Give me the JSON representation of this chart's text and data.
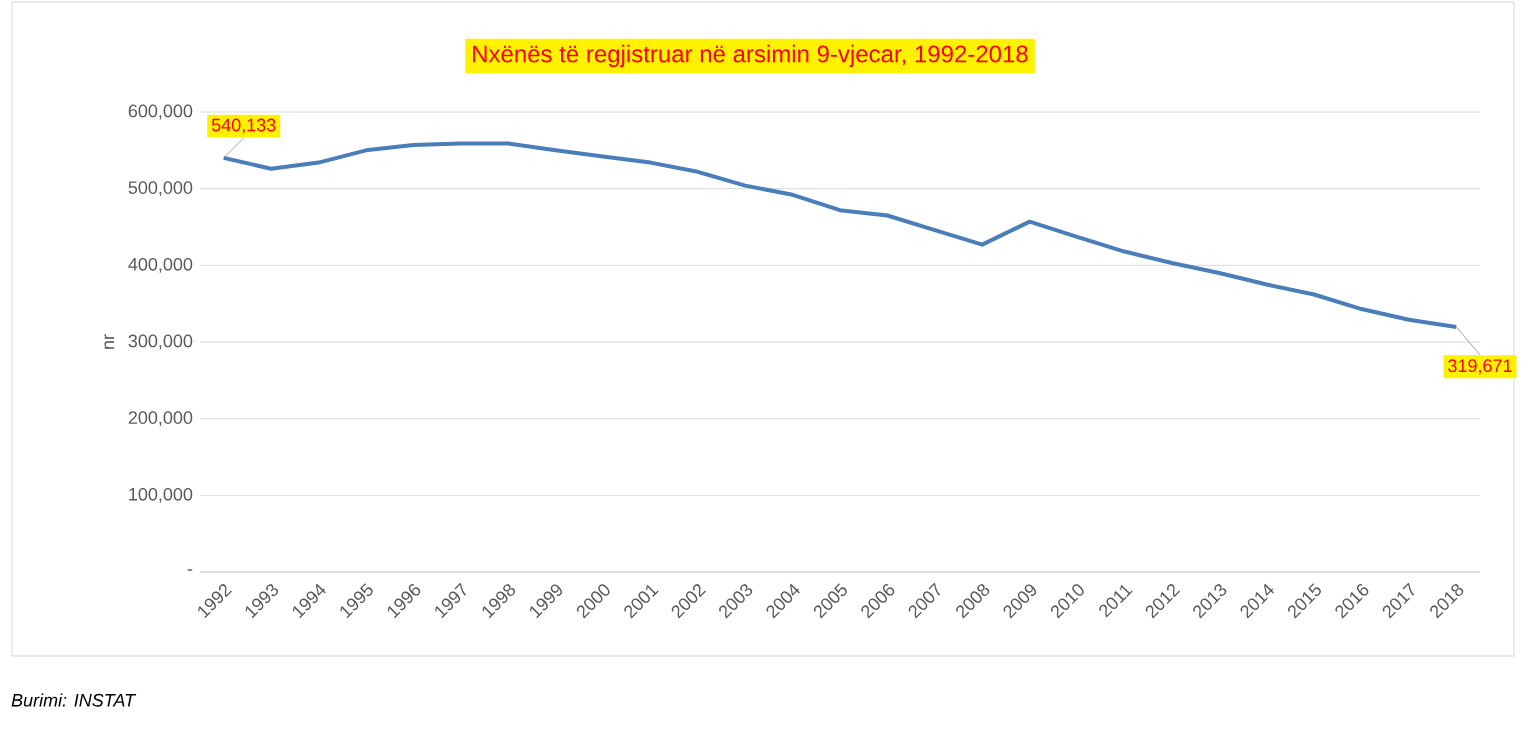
{
  "chart_data": {
    "type": "line",
    "title": "Nxënës të regjistruar në arsimin 9-vjecar, 1992-2018",
    "ylabel": "nr",
    "categories": [
      "1992",
      "1993",
      "1994",
      "1995",
      "1996",
      "1997",
      "1998",
      "1999",
      "2000",
      "2001",
      "2002",
      "2003",
      "2004",
      "2005",
      "2006",
      "2007",
      "2008",
      "2009",
      "2010",
      "2011",
      "2012",
      "2013",
      "2014",
      "2015",
      "2016",
      "2017",
      "2018"
    ],
    "values": [
      540133,
      526000,
      534000,
      550000,
      557000,
      559000,
      559000,
      550000,
      542000,
      534000,
      522000,
      504000,
      492000,
      472000,
      465000,
      446000,
      427000,
      457000,
      437000,
      418000,
      403000,
      390000,
      375000,
      362000,
      343000,
      329000,
      319671
    ],
    "value_labels": [
      "540,133",
      null,
      null,
      null,
      null,
      null,
      null,
      null,
      null,
      null,
      null,
      null,
      null,
      null,
      null,
      null,
      null,
      null,
      null,
      null,
      null,
      null,
      null,
      null,
      null,
      null,
      "319,671"
    ],
    "color": "#4a7ebb",
    "ylim": [
      0,
      600000
    ],
    "yticks": [
      {
        "value": 0,
        "label": "-"
      },
      {
        "value": 100000,
        "label": "100,000"
      },
      {
        "value": 200000,
        "label": "200,000"
      },
      {
        "value": 300000,
        "label": "300,000"
      },
      {
        "value": 400000,
        "label": "400,000"
      },
      {
        "value": 500000,
        "label": "500,000"
      },
      {
        "value": 600000,
        "label": "600,000"
      }
    ],
    "grid": "y",
    "annotations": [
      "Burimi: INSTAT"
    ]
  }
}
